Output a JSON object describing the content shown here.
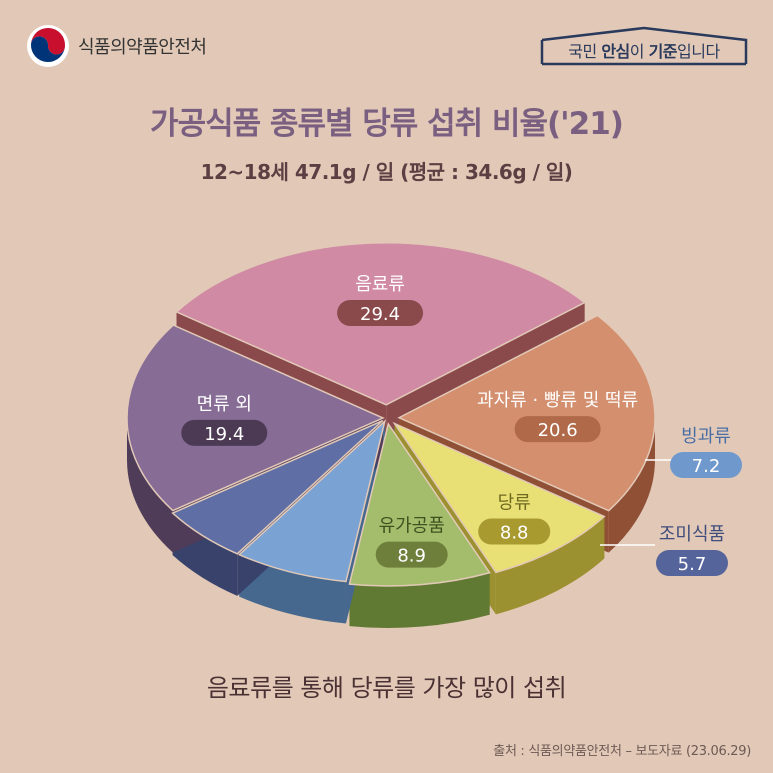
{
  "header": {
    "org_name": "식품의약품안전처",
    "slogan_part1": "국민 ",
    "slogan_part2": "안심",
    "slogan_part3": "이 ",
    "slogan_part4": "기준",
    "slogan_part5": "입니다"
  },
  "caption": "음료류를 통해 당류를 가장 많이 섭취",
  "source": "출처 : 식품의약품안전처 – 보도자료 (23.06.29)",
  "colors": {
    "background": "#e2c9b7",
    "title": "#7a5f80",
    "subtitle": "#5b3f42"
  },
  "chart_data": {
    "type": "pie",
    "title": "가공식품 종류별 당류 섭취 비율('21)",
    "subtitle": "12~18세 47.1g / 일 (평균 : 34.6g / 일)",
    "slices": [
      {
        "label": "음료류",
        "value": 29.4,
        "display": "29.4",
        "color": "#d08aa4",
        "side": "#8a4a4c",
        "badge": "#8a4a4c"
      },
      {
        "label": "과자류 · 빵류 및 떡류",
        "value": 20.6,
        "display": "20.6",
        "color": "#d38f6e",
        "side": "#8f5036",
        "badge": "#b06a4a"
      },
      {
        "label": "당류",
        "value": 8.8,
        "display": "8.8",
        "color": "#e8df75",
        "side": "#9c9130",
        "badge": "#a99a30"
      },
      {
        "label": "유가공품",
        "value": 8.9,
        "display": "8.9",
        "color": "#a4bd6c",
        "side": "#617a33",
        "badge": "#6e7f3b"
      },
      {
        "label": "빙과류",
        "value": 7.2,
        "display": "7.2",
        "color": "#7aa2d3",
        "side": "#46688e",
        "badge": "#6f98cc"
      },
      {
        "label": "조미식품",
        "value": 5.7,
        "display": "5.7",
        "color": "#5f6fa5",
        "side": "#38426b",
        "badge": "#56649c"
      },
      {
        "label": "면류 외",
        "value": 19.4,
        "display": "19.4",
        "color": "#876c96",
        "side": "#4f3c58",
        "badge": "#4c3a55"
      }
    ]
  }
}
